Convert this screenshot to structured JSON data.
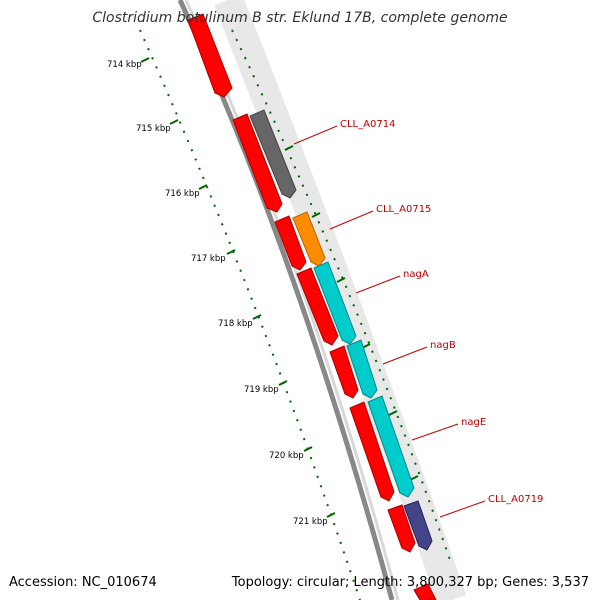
{
  "title": "Clostridium botulinum B str. Eklund 17B, complete genome",
  "footer": {
    "accession": "Accession: NC_010674",
    "summary": "Topology: circular; Length: 3,800,327 bp; Genes: 3,537"
  },
  "ticks": [
    "714 kbp",
    "715 kbp",
    "716 kbp",
    "717 kbp",
    "718 kbp",
    "719 kbp",
    "720 kbp",
    "721 kbp"
  ],
  "colors": {
    "backbone": "#888888",
    "cds": "#ff0000",
    "rna_gray": "#666666",
    "orange": "#ff8c00",
    "cyan": "#00cccc",
    "purple": "#444488",
    "tick": "#006400",
    "label": "#c00000"
  },
  "genes": [
    {
      "name": "CLL_A0714"
    },
    {
      "name": "CLL_A0715"
    },
    {
      "name": "nagA"
    },
    {
      "name": "nagB"
    },
    {
      "name": "nagE"
    },
    {
      "name": "CLL_A0719"
    }
  ]
}
